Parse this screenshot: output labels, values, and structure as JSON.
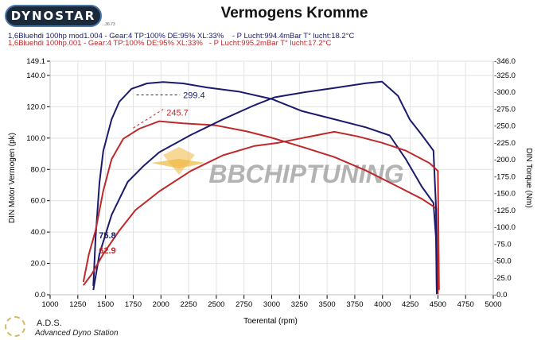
{
  "header": {
    "logo_text": "DYNOSTAR",
    "logo_sub": "...36.73",
    "title": "Vermogens Kromme",
    "runs": [
      {
        "label": "1,6Bluehdi 100hp mod1.004 - Gear:4 TP:100% DE:95% XL:33%    - P Lucht:994.4mBar T° lucht:18.2°C",
        "color": "#1a1a6e"
      },
      {
        "label": "1,6Bluehdi 100hp.001 - Gear:4 TP:100% DE:95% XL:33%   - P Lucht:995.2mBar T° lucht:17.2°C",
        "color": "#c0282a"
      }
    ]
  },
  "footer": {
    "ads_title": "A.D.S.",
    "ads_subtitle": "Advanced Dyno Station"
  },
  "chart_data": {
    "type": "line",
    "title": "Vermogens Kromme",
    "xlabel": "Toerental (rpm)",
    "ylabel": "DIN Motor Vermogen (pk)",
    "y2label": "DIN Torque (Nm)",
    "watermark": "BBCHIPTUNING",
    "xlim": [
      1000,
      5000
    ],
    "ylim": [
      0,
      149.1
    ],
    "y2lim": [
      0,
      346
    ],
    "xticks": [
      "1000",
      "1250",
      "1500",
      "1750",
      "2000",
      "2250",
      "2500",
      "2750",
      "3000",
      "3250",
      "3500",
      "3750",
      "4000",
      "4250",
      "4500",
      "4750",
      "5000"
    ],
    "yticks": [
      "0.0",
      "20.0",
      "40.0",
      "60.0",
      "80.0",
      "100.0",
      "120.0",
      "140.0",
      "149.1"
    ],
    "y2ticks": [
      "-0.0",
      "-25.0",
      "-50.0",
      "-75.0",
      "-100.0",
      "-125.0",
      "-150.0",
      "-175.0",
      "-200.0",
      "-225.0",
      "-250.0",
      "-275.0",
      "-300.0",
      "-325.0",
      "-346.0"
    ],
    "grid": true,
    "series": [
      {
        "name": "mod1.004 torque",
        "axis": "y2",
        "color": "#1a1a6e",
        "points": [
          [
            1390,
            13
          ],
          [
            1410,
            84
          ],
          [
            1445,
            166
          ],
          [
            1480,
            213
          ],
          [
            1555,
            260
          ],
          [
            1625,
            286
          ],
          [
            1735,
            305
          ],
          [
            1875,
            313
          ],
          [
            2020,
            315
          ],
          [
            2200,
            313
          ],
          [
            2415,
            307
          ],
          [
            2700,
            301
          ],
          [
            3000,
            290
          ],
          [
            3275,
            272
          ],
          [
            3565,
            260
          ],
          [
            3850,
            248
          ],
          [
            4065,
            236
          ],
          [
            4210,
            201
          ],
          [
            4355,
            160
          ],
          [
            4460,
            136
          ],
          [
            4483,
            84
          ],
          [
            4490,
            1
          ]
        ]
      },
      {
        "name": "001 torque",
        "axis": "y2",
        "color": "#c0282a",
        "points": [
          [
            1300,
            19
          ],
          [
            1350,
            60
          ],
          [
            1410,
            95
          ],
          [
            1480,
            154
          ],
          [
            1555,
            201
          ],
          [
            1660,
            231
          ],
          [
            1805,
            246
          ],
          [
            1985,
            257
          ],
          [
            2200,
            254
          ],
          [
            2490,
            251
          ],
          [
            2775,
            242
          ],
          [
            2990,
            233
          ],
          [
            3275,
            219
          ],
          [
            3565,
            204
          ],
          [
            3850,
            184
          ],
          [
            4140,
            160
          ],
          [
            4355,
            142
          ],
          [
            4485,
            128
          ],
          [
            4500,
            1
          ]
        ]
      },
      {
        "name": "mod1.004 power",
        "axis": "y",
        "color": "#1a1a6e",
        "points": [
          [
            1390,
            3
          ],
          [
            1445,
            26
          ],
          [
            1555,
            51
          ],
          [
            1700,
            72
          ],
          [
            1840,
            82
          ],
          [
            1985,
            91
          ],
          [
            2270,
            102
          ],
          [
            2560,
            112
          ],
          [
            2845,
            121
          ],
          [
            3025,
            126
          ],
          [
            3275,
            129
          ],
          [
            3565,
            132
          ],
          [
            3850,
            135
          ],
          [
            3995,
            136
          ],
          [
            4140,
            127
          ],
          [
            4245,
            112
          ],
          [
            4355,
            102
          ],
          [
            4460,
            92
          ],
          [
            4483,
            56
          ],
          [
            4490,
            1
          ]
        ]
      },
      {
        "name": "001 power",
        "axis": "y",
        "color": "#c0282a",
        "points": [
          [
            1300,
            6
          ],
          [
            1375,
            13
          ],
          [
            1480,
            26
          ],
          [
            1625,
            41
          ],
          [
            1770,
            54
          ],
          [
            1985,
            66
          ],
          [
            2270,
            79
          ],
          [
            2560,
            89
          ],
          [
            2845,
            95
          ],
          [
            3060,
            97
          ],
          [
            3275,
            100
          ],
          [
            3565,
            104
          ],
          [
            3780,
            101
          ],
          [
            3995,
            97
          ],
          [
            4210,
            92
          ],
          [
            4425,
            84
          ],
          [
            4500,
            79
          ],
          [
            4510,
            3
          ]
        ]
      }
    ],
    "annotations": [
      {
        "text": "299.4",
        "color": "#1a1a6e",
        "x": 2200,
        "y2": 296,
        "from_x": 1780
      },
      {
        "text": "245.7",
        "color": "#c0282a",
        "x": 2050,
        "y2": 270,
        "from_x": 1750,
        "from_y2": 247
      },
      {
        "text": "75.8",
        "color": "#1a1a6e",
        "x": 1440,
        "y2": 88
      },
      {
        "text": "62.9",
        "color": "#c0282a",
        "x": 1440,
        "y2": 66
      }
    ]
  }
}
